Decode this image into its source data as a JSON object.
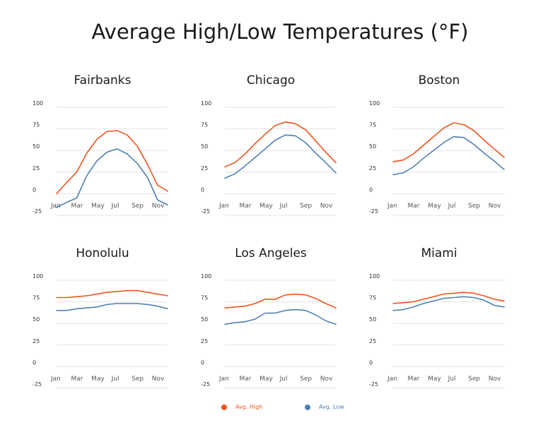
{
  "title": "Average High/Low Temperatures (°F)",
  "colors": {
    "high": "#f0541c",
    "low": "#4f81b4"
  },
  "chart_data": [
    {
      "type": "line",
      "title": "Fairbanks",
      "x": [
        "Jan",
        "Feb",
        "Mar",
        "Apr",
        "May",
        "Jun",
        "Jul",
        "Aug",
        "Sep",
        "Oct",
        "Nov",
        "Dec"
      ],
      "xtick_labels": [
        "Jan",
        "Mar",
        "May",
        "Jul",
        "Sep",
        "Nov"
      ],
      "yticks": [
        "100",
        "75",
        "50",
        "25",
        "0",
        "-25"
      ],
      "ylim": [
        -25,
        100
      ],
      "series": [
        {
          "name": "Avg. High",
          "values": [
            0,
            13,
            25,
            47,
            63,
            72,
            73,
            68,
            55,
            34,
            10,
            3
          ]
        },
        {
          "name": "Avg. Low",
          "values": [
            -16,
            -10,
            -5,
            21,
            38,
            48,
            52,
            46,
            35,
            19,
            -7,
            -13
          ]
        }
      ]
    },
    {
      "type": "line",
      "title": "Chicago",
      "x": [
        "Jan",
        "Feb",
        "Mar",
        "Apr",
        "May",
        "Jun",
        "Jul",
        "Aug",
        "Sep",
        "Oct",
        "Nov",
        "Dec"
      ],
      "xtick_labels": [
        "Jan",
        "Mar",
        "May",
        "Jul",
        "Sep",
        "Nov"
      ],
      "yticks": [
        "100",
        "75",
        "50",
        "25",
        "0",
        "-25"
      ],
      "ylim": [
        -25,
        100
      ],
      "series": [
        {
          "name": "Avg. High",
          "values": [
            31,
            36,
            46,
            58,
            69,
            79,
            83,
            81,
            74,
            61,
            48,
            36
          ]
        },
        {
          "name": "Avg. Low",
          "values": [
            18,
            23,
            32,
            42,
            52,
            62,
            68,
            67,
            59,
            47,
            36,
            24
          ]
        }
      ]
    },
    {
      "type": "line",
      "title": "Boston",
      "x": [
        "Jan",
        "Feb",
        "Mar",
        "Apr",
        "May",
        "Jun",
        "Jul",
        "Aug",
        "Sep",
        "Oct",
        "Nov",
        "Dec"
      ],
      "xtick_labels": [
        "Jan",
        "Mar",
        "May",
        "Jul",
        "Sep",
        "Nov"
      ],
      "yticks": [
        "100",
        "75",
        "50",
        "25",
        "0",
        "-25"
      ],
      "ylim": [
        -25,
        100
      ],
      "series": [
        {
          "name": "Avg. High",
          "values": [
            37,
            39,
            46,
            56,
            66,
            76,
            82,
            80,
            73,
            62,
            52,
            42
          ]
        },
        {
          "name": "Avg. Low",
          "values": [
            22,
            24,
            31,
            41,
            50,
            59,
            66,
            65,
            57,
            47,
            38,
            28
          ]
        }
      ]
    },
    {
      "type": "line",
      "title": "Honolulu",
      "x": [
        "Jan",
        "Feb",
        "Mar",
        "Apr",
        "May",
        "Jun",
        "Jul",
        "Aug",
        "Sep",
        "Oct",
        "Nov",
        "Dec"
      ],
      "xtick_labels": [
        "Jan",
        "Mar",
        "May",
        "Jul",
        "Sep",
        "Nov"
      ],
      "yticks": [
        "100",
        "75",
        "50",
        "25",
        "0",
        "-25"
      ],
      "ylim": [
        -25,
        100
      ],
      "series": [
        {
          "name": "Avg. High",
          "values": [
            80,
            80,
            81,
            82,
            84,
            86,
            87,
            88,
            88,
            86,
            84,
            82
          ]
        },
        {
          "name": "Avg. Low",
          "values": [
            65,
            65,
            67,
            68,
            69,
            72,
            73,
            73,
            73,
            72,
            70,
            67
          ]
        }
      ]
    },
    {
      "type": "line",
      "title": "Los Angeles",
      "x": [
        "Jan",
        "Feb",
        "Mar",
        "Apr",
        "May",
        "Jun",
        "Jul",
        "Aug",
        "Sep",
        "Oct",
        "Nov",
        "Dec"
      ],
      "xtick_labels": [
        "Jan",
        "Mar",
        "May",
        "Jul",
        "Sep",
        "Nov"
      ],
      "yticks": [
        "100",
        "75",
        "50",
        "25",
        "0",
        "-25"
      ],
      "ylim": [
        -25,
        100
      ],
      "series": [
        {
          "name": "Avg. High",
          "values": [
            68,
            69,
            70,
            73,
            78,
            78,
            83,
            84,
            83,
            79,
            73,
            68
          ]
        },
        {
          "name": "Avg. Low",
          "values": [
            49,
            51,
            52,
            55,
            62,
            62,
            65,
            66,
            65,
            60,
            53,
            49
          ]
        }
      ]
    },
    {
      "type": "line",
      "title": "Miami",
      "x": [
        "Jan",
        "Feb",
        "Mar",
        "Apr",
        "May",
        "Jun",
        "Jul",
        "Aug",
        "Sep",
        "Oct",
        "Nov",
        "Dec"
      ],
      "xtick_labels": [
        "Jan",
        "Mar",
        "May",
        "Jul",
        "Sep",
        "Nov"
      ],
      "yticks": [
        "100",
        "75",
        "50",
        "25",
        "0",
        "-25"
      ],
      "ylim": [
        -25,
        100
      ],
      "series": [
        {
          "name": "Avg. High",
          "values": [
            73,
            74,
            75,
            78,
            81,
            84,
            85,
            86,
            85,
            82,
            78,
            76
          ]
        },
        {
          "name": "Avg. Low",
          "values": [
            65,
            66,
            69,
            73,
            76,
            79,
            80,
            81,
            80,
            77,
            71,
            69
          ]
        }
      ]
    }
  ],
  "legend": {
    "high_label": "Avg. High",
    "low_label": "Avg. Low",
    "placement": "bottom"
  }
}
